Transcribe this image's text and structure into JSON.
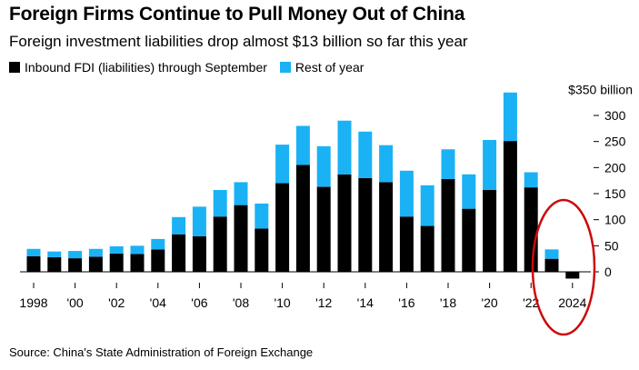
{
  "title": "Foreign Firms Continue to Pull Money Out of China",
  "subtitle": "Foreign investment liabilities drop almost $13 billion so far this year",
  "source": "Source: China's State Administration of Foreign Exchange",
  "colors": {
    "through_september": "#000000",
    "rest_of_year": "#1ab2f4",
    "annotation": "#cc0a0a"
  },
  "chart_data": {
    "type": "bar",
    "stacked": true,
    "categories": [
      1998,
      1999,
      2000,
      2001,
      2002,
      2003,
      2004,
      2005,
      2006,
      2007,
      2008,
      2009,
      2010,
      2011,
      2012,
      2013,
      2014,
      2015,
      2016,
      2017,
      2018,
      2019,
      2020,
      2021,
      2022,
      2023,
      2024
    ],
    "series": [
      {
        "name": "Inbound FDI (liabilities) through September",
        "values": [
          30,
          28,
          26,
          29,
          35,
          34,
          43,
          72,
          68,
          106,
          128,
          83,
          170,
          205,
          163,
          187,
          180,
          172,
          106,
          88,
          178,
          121,
          157,
          251,
          162,
          25,
          -13
        ]
      },
      {
        "name": "Rest of year",
        "values": [
          14,
          11,
          14,
          15,
          14,
          16,
          20,
          33,
          57,
          51,
          44,
          48,
          74,
          75,
          78,
          103,
          89,
          71,
          88,
          78,
          57,
          66,
          96,
          93,
          29,
          18,
          0
        ]
      }
    ],
    "x_tick_labels": [
      "1998",
      "'00",
      "'02",
      "'04",
      "'06",
      "'08",
      "'10",
      "'12",
      "'14",
      "'16",
      "'18",
      "'20",
      "'22",
      "2024"
    ],
    "y_tick_labels": [
      "0",
      "50",
      "100",
      "150",
      "200",
      "250",
      "300",
      "$350 billion"
    ],
    "y_ticks": [
      0,
      50,
      100,
      150,
      200,
      250,
      300,
      350
    ],
    "ylim": [
      -20,
      350
    ],
    "legend_position": "top-left",
    "y_axis_side": "right",
    "grid": false,
    "annotation": "red ellipse circling 2023 and 2024 bars"
  }
}
